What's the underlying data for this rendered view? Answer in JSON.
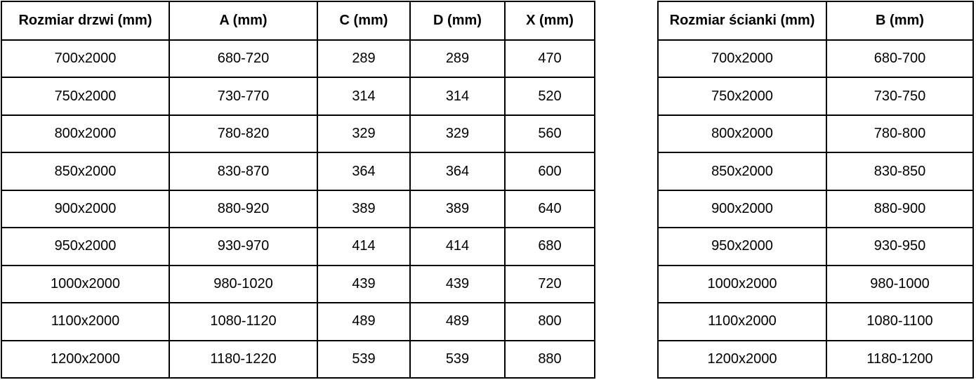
{
  "colors": {
    "border": "#000000",
    "text": "#000000",
    "background": "#ffffff"
  },
  "door_table": {
    "headers": [
      "Rozmiar drzwi (mm)",
      "A (mm)",
      "C (mm)",
      "D (mm)",
      "X (mm)"
    ],
    "rows": [
      [
        "700x2000",
        "680-720",
        "289",
        "289",
        "470"
      ],
      [
        "750x2000",
        "730-770",
        "314",
        "314",
        "520"
      ],
      [
        "800x2000",
        "780-820",
        "329",
        "329",
        "560"
      ],
      [
        "850x2000",
        "830-870",
        "364",
        "364",
        "600"
      ],
      [
        "900x2000",
        "880-920",
        "389",
        "389",
        "640"
      ],
      [
        "950x2000",
        "930-970",
        "414",
        "414",
        "680"
      ],
      [
        "1000x2000",
        "980-1020",
        "439",
        "439",
        "720"
      ],
      [
        "1100x2000",
        "1080-1120",
        "489",
        "489",
        "800"
      ],
      [
        "1200x2000",
        "1180-1220",
        "539",
        "539",
        "880"
      ]
    ]
  },
  "wall_table": {
    "headers": [
      "Rozmiar ścianki (mm)",
      "B (mm)"
    ],
    "rows": [
      [
        "700x2000",
        "680-700"
      ],
      [
        "750x2000",
        "730-750"
      ],
      [
        "800x2000",
        "780-800"
      ],
      [
        "850x2000",
        "830-850"
      ],
      [
        "900x2000",
        "880-900"
      ],
      [
        "950x2000",
        "930-950"
      ],
      [
        "1000x2000",
        "980-1000"
      ],
      [
        "1100x2000",
        "1080-1100"
      ],
      [
        "1200x2000",
        "1180-1200"
      ]
    ]
  }
}
